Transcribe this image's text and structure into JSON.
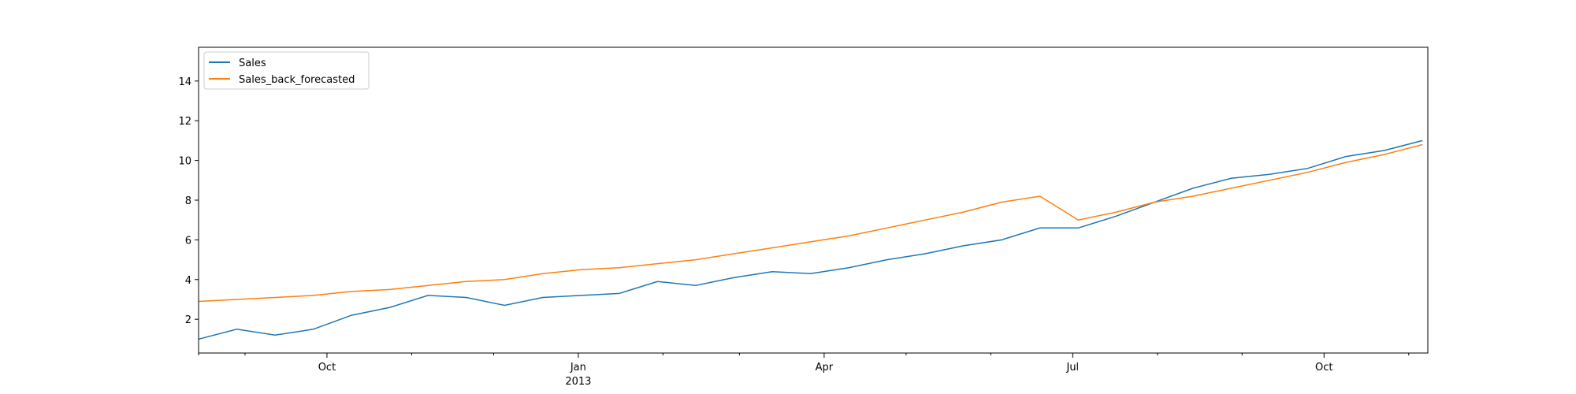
{
  "chart_data": {
    "type": "line",
    "xlabel": "",
    "ylabel": "",
    "x_range": [
      "2012-08-15",
      "2013-11-08"
    ],
    "ylim": [
      0.3,
      15.7
    ],
    "grid": false,
    "legend_position": "top-left",
    "y_ticks": [
      2,
      4,
      6,
      8,
      10,
      12,
      14
    ],
    "x_ticks": [
      {
        "date": "2012-10-01",
        "label": "Oct",
        "sub": ""
      },
      {
        "date": "2013-01-01",
        "label": "Jan",
        "sub": "2013"
      },
      {
        "date": "2013-04-01",
        "label": "Apr",
        "sub": ""
      },
      {
        "date": "2013-07-01",
        "label": "Jul",
        "sub": ""
      },
      {
        "date": "2013-10-01",
        "label": "Oct",
        "sub": ""
      }
    ],
    "minor_tick_dates": [
      "2012-08-15",
      "2012-09-01",
      "2012-11-01",
      "2012-12-01",
      "2013-02-01",
      "2013-03-01",
      "2013-05-01",
      "2013-06-01",
      "2013-08-01",
      "2013-09-01",
      "2013-11-01"
    ],
    "series": [
      {
        "name": "Sales",
        "color": "#1f77b4",
        "x": [
          "2012-08-15",
          "2012-08-29",
          "2012-09-12",
          "2012-09-26",
          "2012-10-10",
          "2012-10-24",
          "2012-11-07",
          "2012-11-21",
          "2012-12-05",
          "2012-12-19",
          "2013-01-02",
          "2013-01-16",
          "2013-01-30",
          "2013-02-13",
          "2013-02-27",
          "2013-03-13",
          "2013-03-27",
          "2013-04-10",
          "2013-04-24",
          "2013-05-08",
          "2013-05-22",
          "2013-06-05",
          "2013-06-19",
          "2013-07-03",
          "2013-07-17",
          "2013-07-31",
          "2013-08-14",
          "2013-08-28",
          "2013-09-11",
          "2013-09-25",
          "2013-10-09",
          "2013-10-23",
          "2013-11-06"
        ],
        "y": [
          1,
          1.5,
          1.2,
          1.5,
          2.2,
          2.6,
          3.2,
          3.1,
          2.7,
          3.1,
          3.2,
          3.3,
          3.9,
          3.7,
          4.1,
          4.4,
          4.3,
          4.6,
          5.0,
          5.3,
          5.7,
          6.0,
          6.6,
          6.6,
          7.2,
          7.9,
          8.6,
          9.1,
          9.3,
          9.6,
          10.2,
          10.5,
          11
        ]
      },
      {
        "name": "Sales_back_forecasted",
        "color": "#ff7f0e",
        "x": [
          "2012-08-15",
          "2012-08-29",
          "2012-09-12",
          "2012-09-26",
          "2012-10-10",
          "2012-10-24",
          "2012-11-07",
          "2012-11-21",
          "2012-12-05",
          "2012-12-19",
          "2013-01-02",
          "2013-01-16",
          "2013-01-30",
          "2013-02-13",
          "2013-02-27",
          "2013-03-13",
          "2013-03-27",
          "2013-04-10",
          "2013-04-24",
          "2013-05-08",
          "2013-05-22",
          "2013-06-05",
          "2013-06-19",
          "2013-07-03",
          "2013-07-17",
          "2013-07-31",
          "2013-08-14",
          "2013-08-28",
          "2013-09-11",
          "2013-09-25",
          "2013-10-09",
          "2013-10-23",
          "2013-11-06"
        ],
        "y": [
          2.9,
          3.0,
          3.1,
          3.2,
          3.4,
          3.5,
          3.7,
          3.9,
          4.0,
          4.3,
          4.5,
          4.6,
          4.8,
          5.0,
          5.3,
          5.6,
          5.9,
          6.2,
          6.6,
          7.0,
          7.4,
          7.9,
          8.2,
          7.0,
          7.4,
          7.9,
          8.2,
          8.6,
          9.0,
          9.4,
          9.9,
          10.3,
          10.8
        ]
      }
    ]
  }
}
